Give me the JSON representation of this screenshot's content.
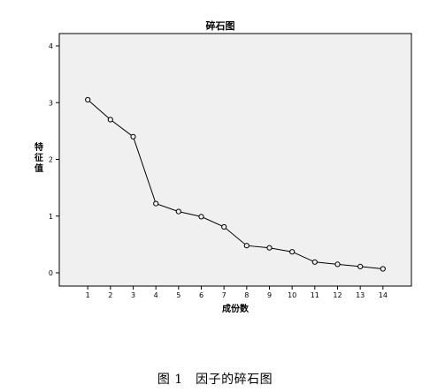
{
  "chart_data": {
    "type": "line",
    "title": "碎石图",
    "xlabel": "成份数",
    "ylabel": "特征值",
    "x": [
      1,
      2,
      3,
      4,
      5,
      6,
      7,
      8,
      9,
      10,
      11,
      12,
      13,
      14
    ],
    "series": [
      {
        "values": [
          3.05,
          2.7,
          2.4,
          1.22,
          1.08,
          0.99,
          0.81,
          0.48,
          0.44,
          0.37,
          0.19,
          0.15,
          0.11,
          0.07
        ]
      }
    ],
    "xlim": [
      0,
      15
    ],
    "ylim": [
      0,
      4
    ],
    "x_ticks": [
      1,
      2,
      3,
      4,
      5,
      6,
      7,
      8,
      9,
      10,
      11,
      12,
      13,
      14
    ],
    "y_ticks": [
      0,
      1,
      2,
      3,
      4
    ],
    "grid": false,
    "markers": "open-circle",
    "colors": {
      "plot_background": "#f0f0f0",
      "line": "#000000"
    }
  },
  "caption": "图 1　因子的碎石图"
}
